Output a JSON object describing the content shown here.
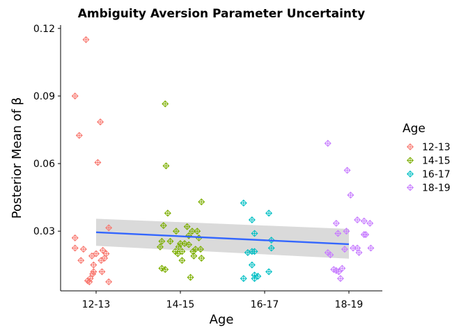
{
  "chart_data": {
    "type": "scatter",
    "title": "Ambiguity Aversion Parameter Uncertainty",
    "xlabel": "Age",
    "ylabel": "Posterior Mean of β",
    "categories": [
      "12-13",
      "14-15",
      "16-17",
      "18-19"
    ],
    "yticks": [
      0.03,
      0.06,
      0.09,
      0.12
    ],
    "ytick_labels": [
      "0.03",
      "0.06",
      "0.09",
      "0.12"
    ],
    "ylim": [
      0.0035,
      0.1215
    ],
    "legend": {
      "title": "Age",
      "placement": "right",
      "entries": [
        "12-13",
        "14-15",
        "16-17",
        "18-19"
      ]
    },
    "grid": false,
    "marker": "diamond-plus",
    "series": [
      {
        "name": "12-13",
        "color": "#F8766D",
        "points": [
          [
            -0.12,
            0.115
          ],
          [
            -0.25,
            0.09
          ],
          [
            -0.2,
            0.0725
          ],
          [
            0.05,
            0.0785
          ],
          [
            0.02,
            0.0605
          ],
          [
            -0.25,
            0.027
          ],
          [
            0.15,
            0.0315
          ],
          [
            -0.25,
            0.0225
          ],
          [
            -0.15,
            0.022
          ],
          [
            -0.18,
            0.017
          ],
          [
            0.0,
            0.02
          ],
          [
            0.08,
            0.0215
          ],
          [
            0.12,
            0.02
          ],
          [
            -0.05,
            0.019
          ],
          [
            0.1,
            0.018
          ],
          [
            0.06,
            0.017
          ],
          [
            -0.03,
            0.015
          ],
          [
            -0.03,
            0.012
          ],
          [
            0.07,
            0.012
          ],
          [
            -0.04,
            0.011
          ],
          [
            -0.1,
            0.008
          ],
          [
            -0.08,
            0.0075
          ],
          [
            0.15,
            0.0075
          ],
          [
            -0.07,
            0.009
          ]
        ]
      },
      {
        "name": "14-15",
        "color": "#7CAE00",
        "points": [
          [
            -0.18,
            0.0865
          ],
          [
            -0.17,
            0.059
          ],
          [
            -0.15,
            0.038
          ],
          [
            0.25,
            0.043
          ],
          [
            -0.2,
            0.0325
          ],
          [
            0.08,
            0.032
          ],
          [
            -0.05,
            0.03
          ],
          [
            0.14,
            0.03
          ],
          [
            0.2,
            0.03
          ],
          [
            0.1,
            0.028
          ],
          [
            0.22,
            0.027
          ],
          [
            -0.22,
            0.0255
          ],
          [
            -0.12,
            0.0255
          ],
          [
            0.0,
            0.0245
          ],
          [
            0.05,
            0.0245
          ],
          [
            0.1,
            0.024
          ],
          [
            -0.24,
            0.023
          ],
          [
            -0.02,
            0.023
          ],
          [
            0.18,
            0.022
          ],
          [
            0.24,
            0.022
          ],
          [
            -0.06,
            0.021
          ],
          [
            0.02,
            0.021
          ],
          [
            0.15,
            0.021
          ],
          [
            -0.03,
            0.02
          ],
          [
            0.16,
            0.019
          ],
          [
            0.25,
            0.018
          ],
          [
            -0.22,
            0.0135
          ],
          [
            -0.18,
            0.013
          ],
          [
            0.02,
            0.017
          ],
          [
            0.12,
            0.0095
          ]
        ]
      },
      {
        "name": "16-17",
        "color": "#00BFC4",
        "points": [
          [
            -0.25,
            0.0425
          ],
          [
            0.05,
            0.038
          ],
          [
            -0.15,
            0.035
          ],
          [
            -0.12,
            0.029
          ],
          [
            0.08,
            0.026
          ],
          [
            -0.2,
            0.0205
          ],
          [
            -0.15,
            0.021
          ],
          [
            -0.12,
            0.021
          ],
          [
            0.08,
            0.0225
          ],
          [
            -0.15,
            0.015
          ],
          [
            0.05,
            0.012
          ],
          [
            -0.25,
            0.009
          ],
          [
            -0.12,
            0.009
          ],
          [
            -0.08,
            0.01
          ],
          [
            -0.12,
            0.0105
          ]
        ]
      },
      {
        "name": "18-19",
        "color": "#C77CFF",
        "points": [
          [
            -0.25,
            0.069
          ],
          [
            -0.02,
            0.057
          ],
          [
            0.02,
            0.046
          ],
          [
            0.1,
            0.035
          ],
          [
            0.18,
            0.0345
          ],
          [
            0.25,
            0.0335
          ],
          [
            -0.15,
            0.0335
          ],
          [
            -0.03,
            0.03
          ],
          [
            -0.13,
            0.029
          ],
          [
            0.18,
            0.0285
          ],
          [
            0.2,
            0.0285
          ],
          [
            0.26,
            0.0225
          ],
          [
            0.05,
            0.0225
          ],
          [
            0.1,
            0.0225
          ],
          [
            0.12,
            0.0205
          ],
          [
            -0.05,
            0.022
          ],
          [
            -0.25,
            0.0205
          ],
          [
            -0.22,
            0.0195
          ],
          [
            -0.18,
            0.013
          ],
          [
            -0.15,
            0.0125
          ],
          [
            -0.12,
            0.012
          ],
          [
            -0.08,
            0.0135
          ],
          [
            -0.1,
            0.009
          ]
        ]
      }
    ],
    "trend": {
      "type": "linear",
      "color": "#3366FF",
      "band_color": "#d4d4d4",
      "start": {
        "x": 1,
        "y": 0.0295,
        "lo": 0.0235,
        "hi": 0.0355
      },
      "end": {
        "x": 4,
        "y": 0.0242,
        "lo": 0.0178,
        "hi": 0.031
      }
    }
  }
}
